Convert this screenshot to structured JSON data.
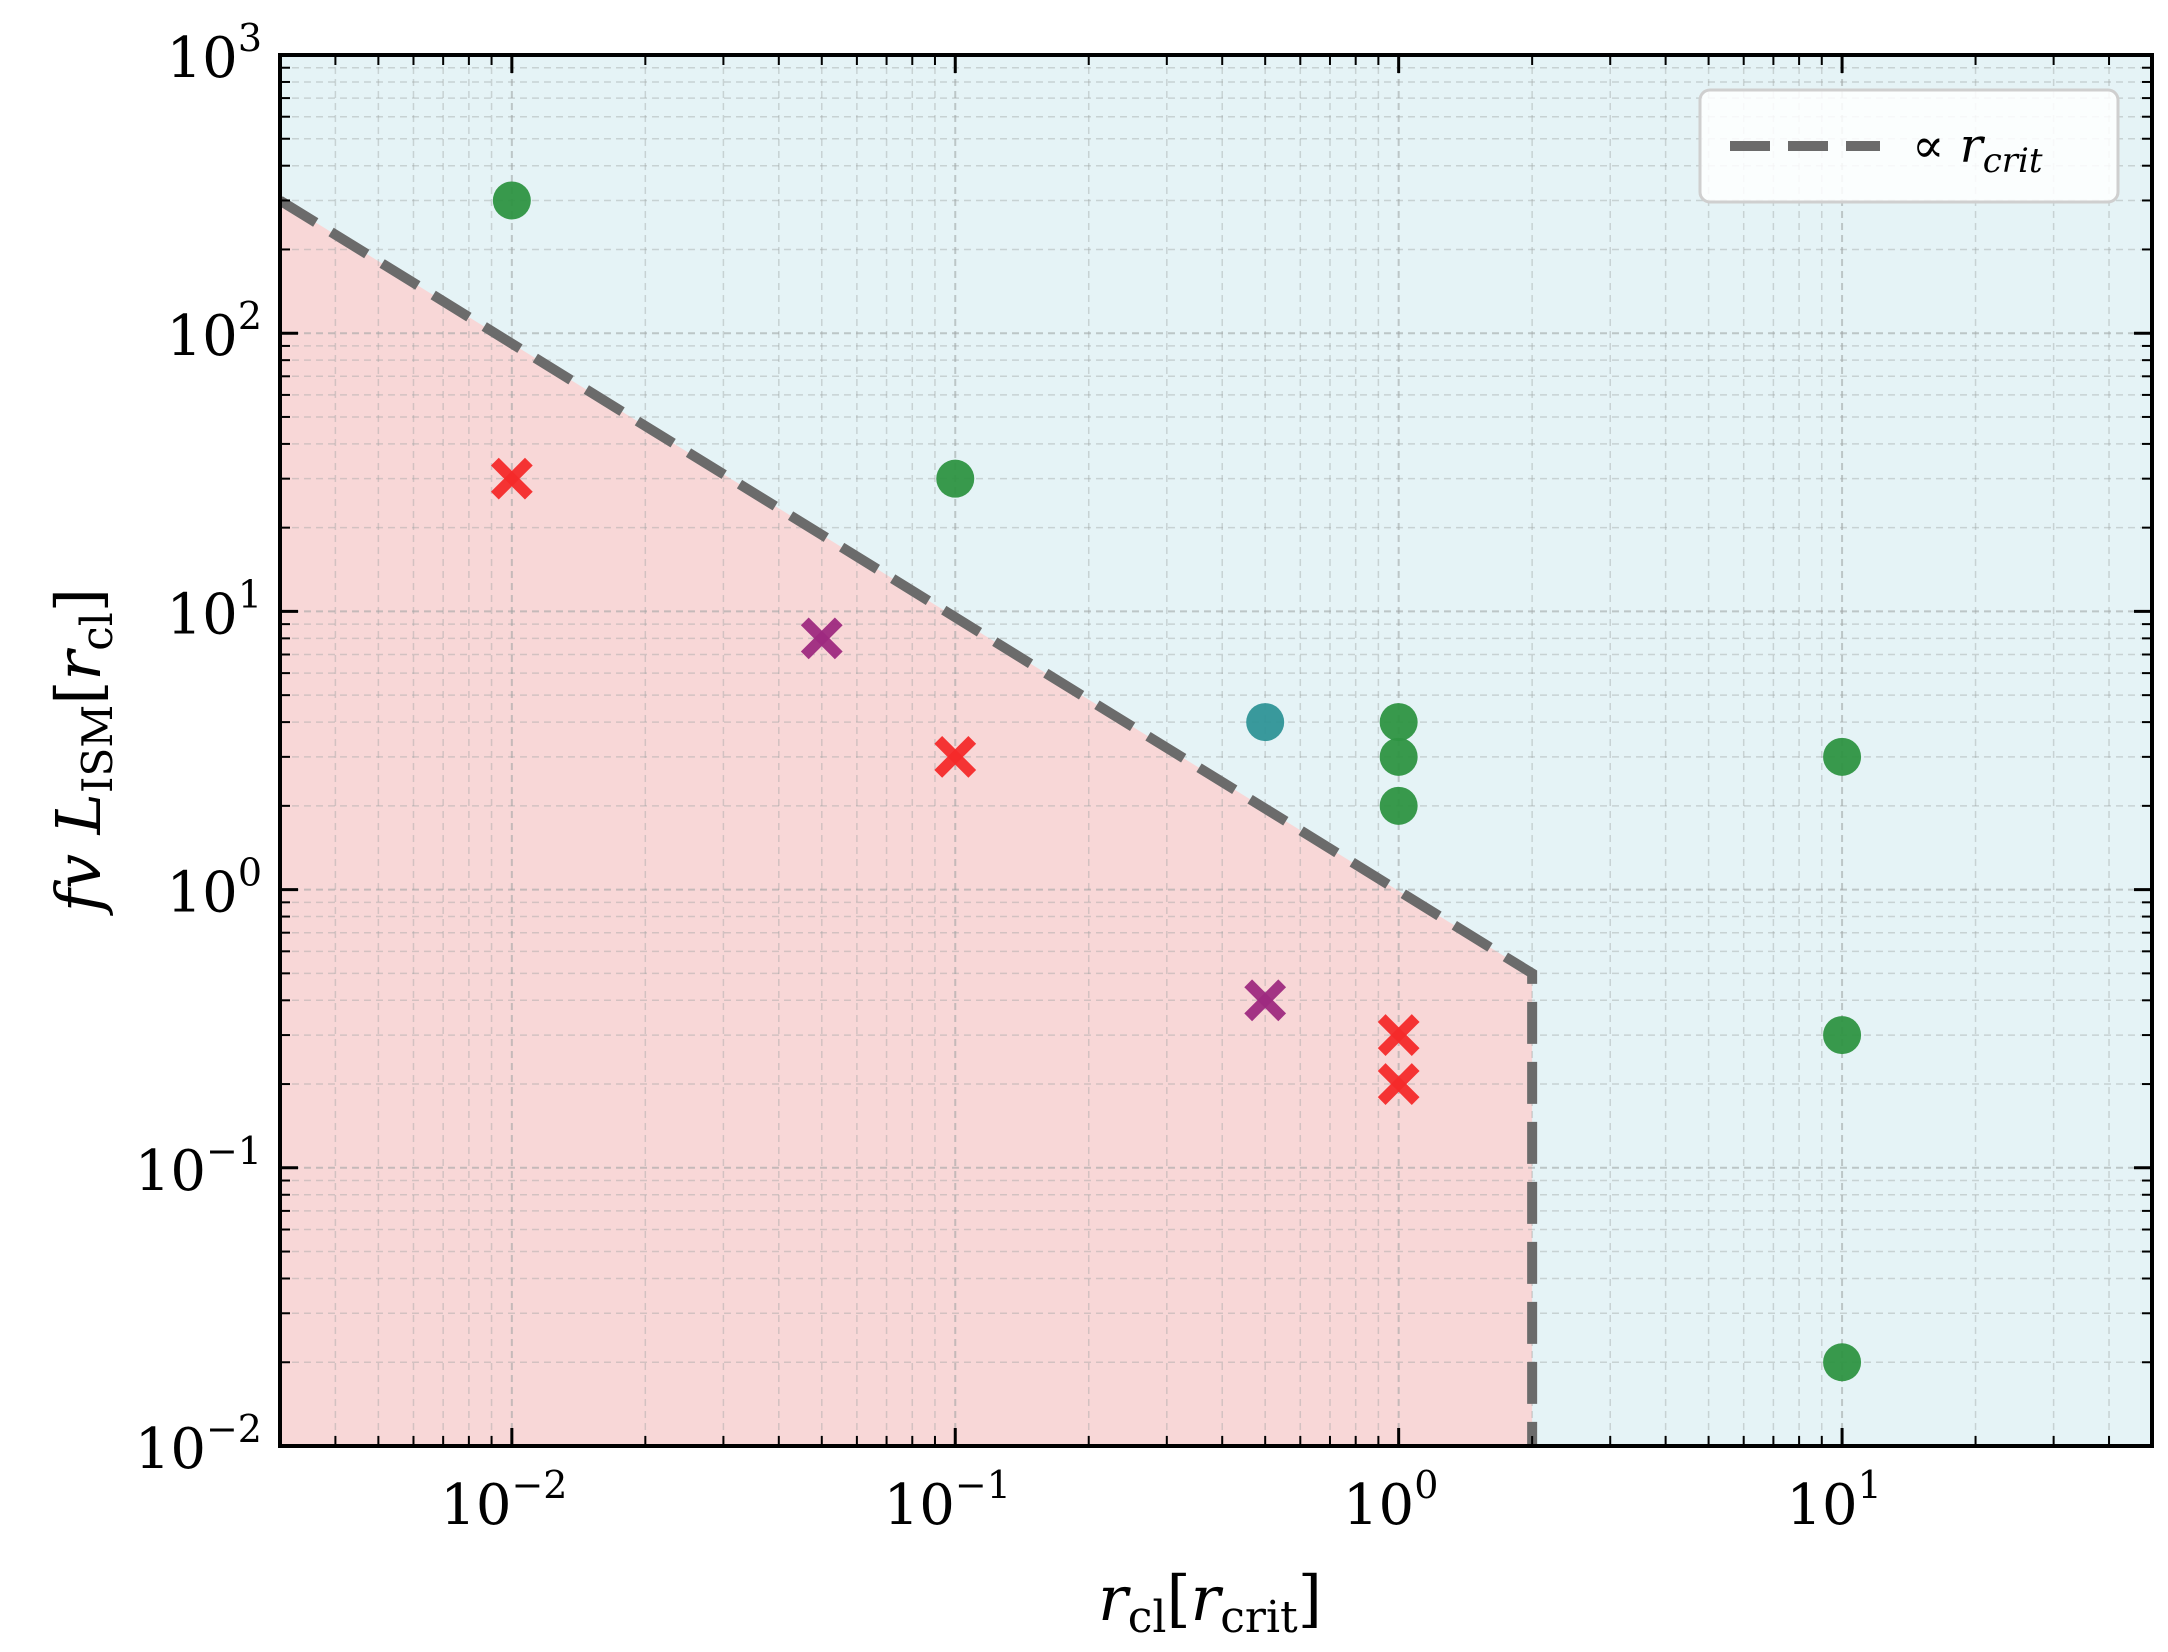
{
  "chart_data": {
    "type": "scatter",
    "xscale": "log",
    "yscale": "log",
    "xlim": [
      0.003,
      50
    ],
    "ylim": [
      0.01,
      1000
    ],
    "grid": true,
    "xlabel": "r_cl[r_crit]",
    "ylabel": "fv L_ISM[r_cl]",
    "x_ticks": [
      {
        "value": 0.01,
        "base": "10",
        "exp": "−2"
      },
      {
        "value": 0.1,
        "base": "10",
        "exp": "−1"
      },
      {
        "value": 1,
        "base": "10",
        "exp": "0"
      },
      {
        "value": 10,
        "base": "10",
        "exp": "1"
      }
    ],
    "y_ticks": [
      {
        "value": 0.01,
        "base": "10",
        "exp": "−2"
      },
      {
        "value": 0.1,
        "base": "10",
        "exp": "−1"
      },
      {
        "value": 1,
        "base": "10",
        "exp": "0"
      },
      {
        "value": 10,
        "base": "10",
        "exp": "1"
      },
      {
        "value": 100,
        "base": "10",
        "exp": "2"
      },
      {
        "value": 1000,
        "base": "10",
        "exp": "3"
      }
    ],
    "legend": {
      "position": "top-right",
      "label": "∝ r_crit"
    },
    "regions": {
      "boundary": [
        [
          0.003,
          300
        ],
        [
          2,
          0.5
        ],
        [
          2,
          0.01
        ]
      ],
      "inside_color": "#f8d7d7",
      "outside_color": "#e5f3f6",
      "line_color": "#6b6b6b"
    },
    "series": [
      {
        "marker": "circle",
        "color": "#2e9442",
        "points": [
          [
            0.01,
            300
          ],
          [
            0.1,
            30
          ],
          [
            1,
            4
          ],
          [
            1,
            3
          ],
          [
            1,
            2
          ],
          [
            10,
            3
          ],
          [
            10,
            0.3
          ],
          [
            10,
            0.02
          ]
        ]
      },
      {
        "marker": "circle",
        "color": "#2f9497",
        "points": [
          [
            0.5,
            4
          ]
        ]
      },
      {
        "marker": "cross",
        "color": "#f42a2a",
        "points": [
          [
            0.01,
            30
          ],
          [
            0.1,
            3
          ],
          [
            1,
            0.3
          ],
          [
            1,
            0.2
          ]
        ]
      },
      {
        "marker": "cross",
        "color": "#9e2a80",
        "points": [
          [
            0.05,
            8
          ],
          [
            0.5,
            0.4
          ]
        ]
      }
    ]
  }
}
